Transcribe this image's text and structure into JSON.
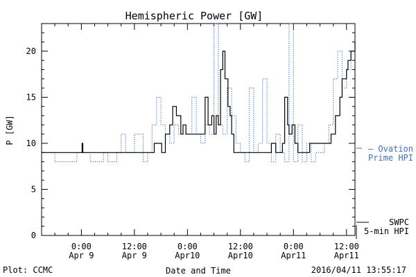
{
  "chart_data": {
    "type": "line",
    "title": "Hemispheric Power [GW]",
    "xlabel": "Date and Time",
    "ylabel": "P [GW]",
    "ylim": [
      0,
      23
    ],
    "yticks": [
      0,
      5,
      10,
      15,
      20
    ],
    "xlim": [
      "2016-04-08 15:00",
      "2016-04-11 13:55"
    ],
    "xticks": [
      {
        "at": "2016-04-09 00:00",
        "line1": "0:00",
        "line2": "Apr 9"
      },
      {
        "at": "2016-04-09 12:00",
        "line1": "12:00",
        "line2": "Apr 9"
      },
      {
        "at": "2016-04-10 00:00",
        "line1": "0:00",
        "line2": "Apr10"
      },
      {
        "at": "2016-04-10 12:00",
        "line1": "12:00",
        "line2": "Apr10"
      },
      {
        "at": "2016-04-11 00:00",
        "line1": "0:00",
        "line2": "Apr11"
      },
      {
        "at": "2016-04-11 12:00",
        "line1": "12:00",
        "line2": "Apr11"
      }
    ],
    "grid": false,
    "series": [
      {
        "name": "SWPC 5-min HPI",
        "color": "#000000",
        "style": "solid",
        "x": [
          "2016-04-08 15:00",
          "2016-04-09 00:00",
          "2016-04-09 00:10",
          "2016-04-09 00:20",
          "2016-04-09 00:30",
          "2016-04-09 12:30",
          "2016-04-09 16:30",
          "2016-04-09 17:30",
          "2016-04-09 18:10",
          "2016-04-09 19:00",
          "2016-04-09 20:00",
          "2016-04-09 20:40",
          "2016-04-09 21:30",
          "2016-04-09 22:30",
          "2016-04-09 23:00",
          "2016-04-09 23:40",
          "2016-04-10 00:30",
          "2016-04-10 01:30",
          "2016-04-10 02:40",
          "2016-04-10 03:30",
          "2016-04-10 04:00",
          "2016-04-10 04:40",
          "2016-04-10 05:30",
          "2016-04-10 06:00",
          "2016-04-10 06:30",
          "2016-04-10 07:00",
          "2016-04-10 07:30",
          "2016-04-10 08:00",
          "2016-04-10 08:30",
          "2016-04-10 09:10",
          "2016-04-10 09:40",
          "2016-04-10 10:00",
          "2016-04-10 10:30",
          "2016-04-10 11:00",
          "2016-04-10 11:30",
          "2016-04-10 12:00",
          "2016-04-10 13:00",
          "2016-04-10 14:00",
          "2016-04-10 15:00",
          "2016-04-10 17:00",
          "2016-04-10 18:00",
          "2016-04-10 19:00",
          "2016-04-10 20:00",
          "2016-04-10 21:00",
          "2016-04-10 21:30",
          "2016-04-10 22:00",
          "2016-04-10 22:40",
          "2016-04-10 23:00",
          "2016-04-10 23:40",
          "2016-04-11 00:20",
          "2016-04-11 01:00",
          "2016-04-11 01:40",
          "2016-04-11 02:30",
          "2016-04-11 03:00",
          "2016-04-11 03:40",
          "2016-04-11 05:00",
          "2016-04-11 07:30",
          "2016-04-11 08:30",
          "2016-04-11 09:30",
          "2016-04-11 10:30",
          "2016-04-11 11:00",
          "2016-04-11 11:30",
          "2016-04-11 12:00",
          "2016-04-11 12:20",
          "2016-04-11 12:40",
          "2016-04-11 13:00",
          "2016-04-11 13:20",
          "2016-04-11 13:55"
        ],
        "y": [
          9,
          9,
          10,
          9,
          9,
          9,
          10,
          10,
          9,
          11,
          12,
          14,
          13,
          11,
          12,
          11,
          11,
          11,
          11,
          11,
          15,
          12,
          13,
          11,
          13,
          12,
          18,
          20,
          17,
          14,
          13,
          11,
          9,
          9,
          9,
          9,
          9,
          9,
          9,
          9,
          9,
          10,
          9,
          9,
          10,
          15,
          12,
          11,
          12,
          10,
          9,
          9,
          9,
          9,
          10,
          10,
          10,
          11,
          13,
          15,
          17,
          17,
          18,
          19,
          19,
          20,
          20,
          21
        ]
      },
      {
        "name": "Ovation Prime HPI",
        "color": "#3b6fc6",
        "style": "dotted",
        "x": [
          "2016-04-08 15:00",
          "2016-04-08 18:00",
          "2016-04-08 23:00",
          "2016-04-09 00:00",
          "2016-04-09 01:00",
          "2016-04-09 02:00",
          "2016-04-09 05:00",
          "2016-04-09 06:00",
          "2016-04-09 07:00",
          "2016-04-09 08:00",
          "2016-04-09 09:00",
          "2016-04-09 10:00",
          "2016-04-09 12:00",
          "2016-04-09 14:00",
          "2016-04-09 15:00",
          "2016-04-09 16:00",
          "2016-04-09 17:00",
          "2016-04-09 18:00",
          "2016-04-09 19:00",
          "2016-04-09 20:00",
          "2016-04-09 21:00",
          "2016-04-09 22:00",
          "2016-04-10 01:00",
          "2016-04-10 02:00",
          "2016-04-10 03:00",
          "2016-04-10 04:00",
          "2016-04-10 05:00",
          "2016-04-10 06:00",
          "2016-04-10 07:00",
          "2016-04-10 08:00",
          "2016-04-10 09:00",
          "2016-04-10 10:00",
          "2016-04-10 11:00",
          "2016-04-10 12:00",
          "2016-04-10 13:00",
          "2016-04-10 14:00",
          "2016-04-10 15:00",
          "2016-04-10 16:00",
          "2016-04-10 17:00",
          "2016-04-10 18:00",
          "2016-04-10 19:00",
          "2016-04-10 20:00",
          "2016-04-10 21:00",
          "2016-04-10 22:00",
          "2016-04-10 23:00",
          "2016-04-11 00:00",
          "2016-04-11 01:00",
          "2016-04-11 02:00",
          "2016-04-11 03:00",
          "2016-04-11 04:00",
          "2016-04-11 05:00",
          "2016-04-11 06:00",
          "2016-04-11 07:00",
          "2016-04-11 08:00",
          "2016-04-11 09:00",
          "2016-04-11 10:00",
          "2016-04-11 11:00",
          "2016-04-11 12:00",
          "2016-04-11 13:00",
          "2016-04-11 13:55"
        ],
        "y": [
          9,
          8,
          9,
          9,
          9,
          8,
          9,
          8,
          8,
          9,
          11,
          9,
          11,
          8,
          9,
          12,
          15,
          12,
          11,
          10,
          12,
          11,
          15,
          11,
          10,
          12,
          11,
          23,
          12,
          11,
          16,
          13,
          10,
          9,
          8,
          16,
          9,
          10,
          17,
          10,
          8,
          11,
          9,
          8,
          23,
          8,
          12,
          8,
          10,
          8,
          9,
          9,
          10,
          12,
          17,
          20,
          16,
          18,
          20,
          21
        ]
      }
    ],
    "legend": [
      {
        "line1": "— Ovation",
        "line2": "Prime HPI",
        "color": "#3b6fc6"
      },
      {
        "line1": "SWPC",
        "line2": "5-min HPI",
        "color": "#000000"
      }
    ]
  },
  "footer": {
    "plot_credit": "Plot: CCMC",
    "timestamp": "2016/04/11 13:55:17"
  }
}
